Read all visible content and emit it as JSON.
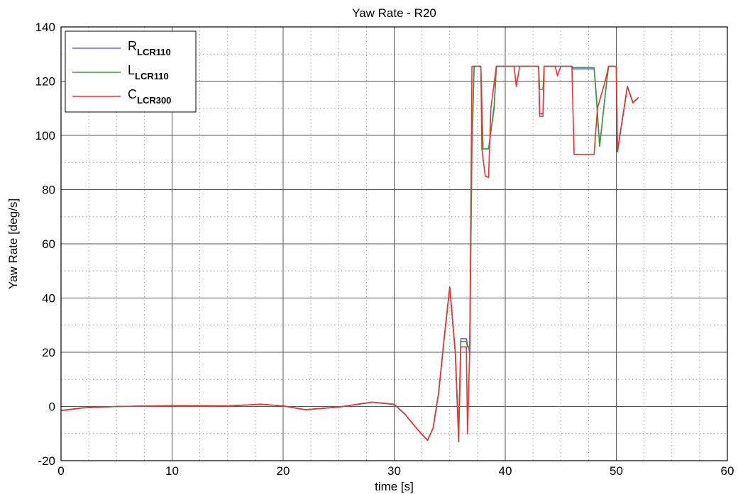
{
  "chart_data": {
    "type": "line",
    "title": "Yaw Rate - R20",
    "xlabel": "time [s]",
    "ylabel": "Yaw Rate [deg/s]",
    "xlim": [
      0,
      60
    ],
    "ylim": [
      -20,
      140
    ],
    "xticks": [
      0,
      10,
      20,
      30,
      40,
      50,
      60
    ],
    "yticks": [
      -20,
      0,
      20,
      40,
      60,
      80,
      100,
      120,
      140
    ],
    "x_tick_labels": [
      "0",
      "10",
      "20",
      "30",
      "40",
      "50",
      "60"
    ],
    "y_tick_labels": [
      "-20",
      "0",
      "20",
      "40",
      "60",
      "80",
      "100",
      "120",
      "140"
    ],
    "grid": true,
    "legend_position": "top-left",
    "series": [
      {
        "name": "R",
        "name_sub": "LCR110",
        "color": "#6666ff",
        "points": [
          [
            0,
            -1.5
          ],
          [
            2,
            -0.5
          ],
          [
            5,
            0
          ],
          [
            10,
            0.3
          ],
          [
            15,
            0.2
          ],
          [
            18,
            0.8
          ],
          [
            20,
            0.2
          ],
          [
            22,
            -1.2
          ],
          [
            25,
            -0.2
          ],
          [
            28,
            1.6
          ],
          [
            30,
            0.8
          ],
          [
            31,
            -3
          ],
          [
            32,
            -8
          ],
          [
            33,
            -12.5
          ],
          [
            33.5,
            -8
          ],
          [
            34,
            5
          ],
          [
            34.5,
            25
          ],
          [
            35,
            44
          ],
          [
            35.5,
            20
          ],
          [
            35.8,
            -10
          ],
          [
            36,
            25
          ],
          [
            36.5,
            25
          ],
          [
            36.6,
            23
          ],
          [
            36.8,
            20
          ],
          [
            37,
            95
          ],
          [
            37.2,
            125.5
          ],
          [
            37.8,
            125.5
          ],
          [
            38,
            95
          ],
          [
            38.5,
            95
          ],
          [
            39,
            111
          ],
          [
            39.2,
            125.5
          ],
          [
            43,
            125.5
          ],
          [
            43.1,
            107
          ],
          [
            43.4,
            107
          ],
          [
            43.5,
            125.5
          ],
          [
            46,
            125.5
          ],
          [
            46.1,
            124.5
          ],
          [
            48,
            124.5
          ],
          [
            48.2,
            115
          ],
          [
            48.5,
            96
          ],
          [
            49,
            115
          ],
          [
            49.3,
            125.5
          ],
          [
            50,
            125.5
          ],
          [
            50.1,
            94
          ],
          [
            51,
            118
          ],
          [
            51.5,
            112
          ],
          [
            52,
            114
          ]
        ]
      },
      {
        "name": "L",
        "name_sub": "LCR110",
        "color": "#33a033",
        "points": [
          [
            0,
            -1.5
          ],
          [
            2,
            -0.5
          ],
          [
            5,
            0
          ],
          [
            10,
            0.3
          ],
          [
            15,
            0.2
          ],
          [
            18,
            0.8
          ],
          [
            20,
            0.2
          ],
          [
            22,
            -1.2
          ],
          [
            25,
            -0.2
          ],
          [
            28,
            1.6
          ],
          [
            30,
            0.8
          ],
          [
            31,
            -3
          ],
          [
            32,
            -8
          ],
          [
            33,
            -12.5
          ],
          [
            33.5,
            -8
          ],
          [
            34,
            5
          ],
          [
            34.5,
            25
          ],
          [
            35,
            44
          ],
          [
            35.5,
            20
          ],
          [
            35.8,
            -10
          ],
          [
            36,
            24
          ],
          [
            36.5,
            24
          ],
          [
            36.6,
            22
          ],
          [
            36.8,
            22
          ],
          [
            37,
            98
          ],
          [
            37.2,
            125.5
          ],
          [
            37.8,
            125.5
          ],
          [
            38,
            95
          ],
          [
            38.5,
            95
          ],
          [
            39,
            110
          ],
          [
            39.2,
            125.5
          ],
          [
            43,
            125.5
          ],
          [
            43.1,
            117
          ],
          [
            43.4,
            117
          ],
          [
            43.5,
            125.5
          ],
          [
            46,
            125.5
          ],
          [
            46.1,
            125
          ],
          [
            48,
            125
          ],
          [
            48.2,
            114
          ],
          [
            48.5,
            96
          ],
          [
            49,
            115
          ],
          [
            49.3,
            125.5
          ],
          [
            50,
            125.5
          ],
          [
            50.1,
            94
          ],
          [
            51,
            118
          ],
          [
            51.5,
            112
          ],
          [
            52,
            114
          ]
        ]
      },
      {
        "name": "C",
        "name_sub": "LCR300",
        "color": "#ff2a2a",
        "points": [
          [
            0,
            -1.5
          ],
          [
            2,
            -0.5
          ],
          [
            5,
            0
          ],
          [
            10,
            0.3
          ],
          [
            15,
            0.2
          ],
          [
            18,
            0.8
          ],
          [
            20,
            0.2
          ],
          [
            22,
            -1.2
          ],
          [
            25,
            -0.2
          ],
          [
            28,
            1.6
          ],
          [
            30,
            0.8
          ],
          [
            31,
            -3
          ],
          [
            32,
            -8
          ],
          [
            33,
            -12.5
          ],
          [
            33.5,
            -8
          ],
          [
            34,
            5
          ],
          [
            34.5,
            25
          ],
          [
            35,
            44
          ],
          [
            35.5,
            20
          ],
          [
            35.8,
            -13
          ],
          [
            36,
            22
          ],
          [
            36.5,
            22
          ],
          [
            36.6,
            -10
          ],
          [
            36.8,
            20
          ],
          [
            37,
            125.5
          ],
          [
            37.8,
            125.5
          ],
          [
            37.9,
            95
          ],
          [
            38.2,
            85
          ],
          [
            38.5,
            84.5
          ],
          [
            38.7,
            110
          ],
          [
            39.2,
            125.5
          ],
          [
            40.8,
            125.5
          ],
          [
            41,
            118
          ],
          [
            41.3,
            125.5
          ],
          [
            43,
            125.5
          ],
          [
            43.1,
            108
          ],
          [
            43.4,
            108
          ],
          [
            43.5,
            125.5
          ],
          [
            44.5,
            125.5
          ],
          [
            44.7,
            122
          ],
          [
            45,
            125.5
          ],
          [
            46,
            125.5
          ],
          [
            46.2,
            93
          ],
          [
            48,
            93
          ],
          [
            48.3,
            110
          ],
          [
            49,
            120
          ],
          [
            49.3,
            125.5
          ],
          [
            50,
            125.5
          ],
          [
            50.1,
            94
          ],
          [
            51,
            118
          ],
          [
            51.5,
            112
          ],
          [
            52,
            114
          ]
        ]
      }
    ]
  }
}
